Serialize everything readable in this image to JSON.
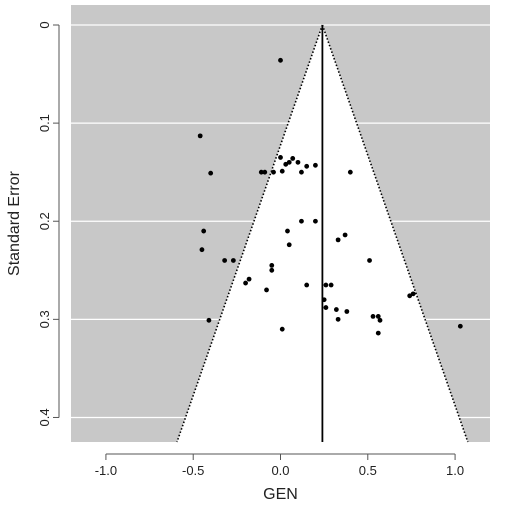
{
  "chart_data": {
    "type": "scatter",
    "subtype": "funnel-plot",
    "xlabel": "GEN",
    "ylabel": "Standard Error",
    "xlim": [
      -1.2,
      1.2
    ],
    "ylim": [
      0,
      0.425
    ],
    "y_reversed": true,
    "x_ticks": [
      -1.0,
      -0.5,
      0.0,
      0.5,
      1.0
    ],
    "x_tick_labels": [
      "-1.0",
      "-0.5",
      "0.0",
      "0.5",
      "1.0"
    ],
    "y_ticks": [
      0,
      0.1,
      0.2,
      0.3,
      0.4
    ],
    "y_tick_labels": [
      "0",
      "0.1",
      "0.2",
      "0.3",
      "0.4"
    ],
    "grid": "horizontal",
    "pooled_estimate": 0.24,
    "funnel_z": 1.96,
    "colors": {
      "outside_funnel": "#c8c8c8",
      "inside_funnel": "#ffffff",
      "points": "#000000",
      "grid": "#ffffff"
    },
    "points": [
      {
        "x": 0.0,
        "y": 0.036
      },
      {
        "x": -0.46,
        "y": 0.113
      },
      {
        "x": -0.4,
        "y": 0.151
      },
      {
        "x": -0.11,
        "y": 0.15
      },
      {
        "x": -0.09,
        "y": 0.15
      },
      {
        "x": -0.04,
        "y": 0.15
      },
      {
        "x": 0.01,
        "y": 0.149
      },
      {
        "x": 0.0,
        "y": 0.135
      },
      {
        "x": 0.03,
        "y": 0.142
      },
      {
        "x": 0.05,
        "y": 0.14
      },
      {
        "x": 0.07,
        "y": 0.136
      },
      {
        "x": 0.1,
        "y": 0.14
      },
      {
        "x": 0.12,
        "y": 0.15
      },
      {
        "x": 0.15,
        "y": 0.144
      },
      {
        "x": 0.2,
        "y": 0.143
      },
      {
        "x": 0.4,
        "y": 0.15
      },
      {
        "x": -0.44,
        "y": 0.21
      },
      {
        "x": -0.45,
        "y": 0.229
      },
      {
        "x": 0.12,
        "y": 0.2
      },
      {
        "x": 0.2,
        "y": 0.2
      },
      {
        "x": 0.04,
        "y": 0.21
      },
      {
        "x": 0.05,
        "y": 0.224
      },
      {
        "x": 0.33,
        "y": 0.219
      },
      {
        "x": 0.37,
        "y": 0.214
      },
      {
        "x": -0.32,
        "y": 0.24
      },
      {
        "x": -0.27,
        "y": 0.24
      },
      {
        "x": -0.05,
        "y": 0.245
      },
      {
        "x": -0.05,
        "y": 0.25
      },
      {
        "x": 0.51,
        "y": 0.24
      },
      {
        "x": -0.2,
        "y": 0.263
      },
      {
        "x": -0.18,
        "y": 0.259
      },
      {
        "x": -0.08,
        "y": 0.27
      },
      {
        "x": 0.15,
        "y": 0.265
      },
      {
        "x": 0.26,
        "y": 0.265
      },
      {
        "x": 0.29,
        "y": 0.265
      },
      {
        "x": 0.25,
        "y": 0.28
      },
      {
        "x": 0.26,
        "y": 0.288
      },
      {
        "x": 0.32,
        "y": 0.29
      },
      {
        "x": 0.38,
        "y": 0.292
      },
      {
        "x": -0.41,
        "y": 0.301
      },
      {
        "x": 0.01,
        "y": 0.31
      },
      {
        "x": 0.33,
        "y": 0.3
      },
      {
        "x": 0.53,
        "y": 0.297
      },
      {
        "x": 0.56,
        "y": 0.297
      },
      {
        "x": 0.57,
        "y": 0.301
      },
      {
        "x": 0.56,
        "y": 0.314
      },
      {
        "x": 0.74,
        "y": 0.276
      },
      {
        "x": 0.76,
        "y": 0.274
      },
      {
        "x": 1.03,
        "y": 0.307
      }
    ]
  }
}
